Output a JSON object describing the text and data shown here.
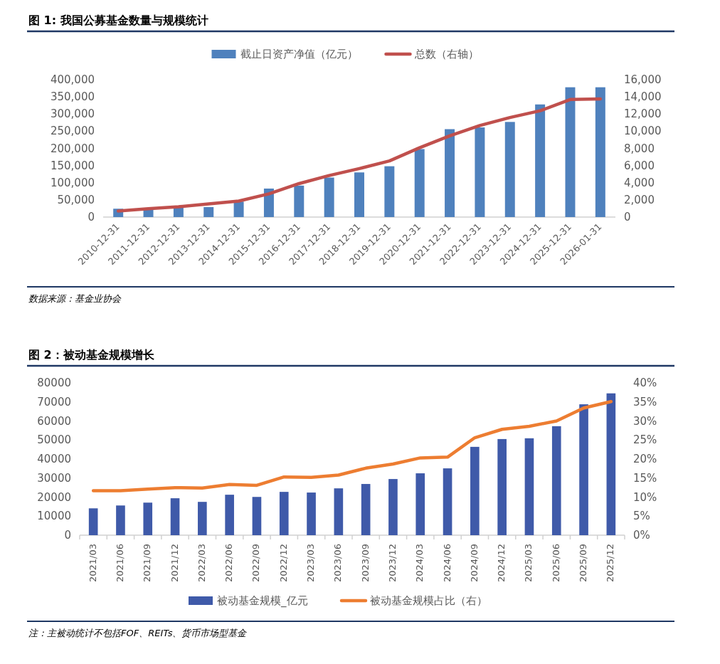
{
  "chart_data": [
    {
      "type": "bar",
      "title": "图 1: 我国公募基金数量与规模统计",
      "categories": [
        "2010-12-31",
        "2011-12-31",
        "2012-12-31",
        "2013-12-31",
        "2014-12-31",
        "2015-12-31",
        "2016-12-31",
        "2017-12-31",
        "2018-12-31",
        "2019-12-31",
        "2020-12-31",
        "2021-12-31",
        "2022-12-31",
        "2023-12-31",
        "2024-12-31",
        "2025-12-31",
        "2026-01-31"
      ],
      "series": [
        {
          "name": "截止日资产净值（亿元）",
          "color": "#4f81bd",
          "values": [
            24300,
            21700,
            28000,
            29000,
            45000,
            83000,
            91600,
            115000,
            130000,
            148000,
            198000,
            256000,
            261000,
            277000,
            328000,
            378000,
            378000
          ]
        },
        {
          "name": "总数（右轴）",
          "type": "line",
          "axis": "y2",
          "color": "#c0504d",
          "values": [
            700,
            970,
            1200,
            1530,
            1860,
            2700,
            3900,
            4840,
            5650,
            6540,
            8070,
            9460,
            10660,
            11600,
            12380,
            13690,
            13770
          ]
        }
      ],
      "ylim": [
        0,
        400000
      ],
      "yticks": [
        0,
        {
          "value": 50000,
          "label": "50,000"
        },
        {
          "value": 100000,
          "label": "100,000"
        },
        {
          "value": 150000,
          "label": "150,000"
        },
        {
          "value": 200000,
          "label": "200,000"
        },
        {
          "value": 250000,
          "label": "250,000"
        },
        {
          "value": 300000,
          "label": "300,000"
        },
        {
          "value": 350000,
          "label": "350,000"
        },
        {
          "value": 400000,
          "label": "400,000"
        }
      ],
      "y2lim": [
        0,
        16000
      ],
      "y2ticks": [
        0,
        {
          "value": 2000,
          "label": "2,000"
        },
        {
          "value": 4000,
          "label": "4,000"
        },
        {
          "value": 6000,
          "label": "6,000"
        },
        {
          "value": 8000,
          "label": "8,000"
        },
        {
          "value": 10000,
          "label": "10,000"
        },
        {
          "value": 12000,
          "label": "12,000"
        },
        {
          "value": 14000,
          "label": "14,000"
        },
        {
          "value": 16000,
          "label": "16,000"
        }
      ],
      "legend": "top",
      "annotations": [
        "数据来源：基金业协会"
      ]
    },
    {
      "type": "bar",
      "title": "图 2：被动基金规模增长",
      "categories": [
        "2021/03",
        "2021/06",
        "2021/09",
        "2021/12",
        "2022/03",
        "2022/06",
        "2022/09",
        "2022/12",
        "2023/03",
        "2023/06",
        "2023/09",
        "2023/12",
        "2024/03",
        "2024/06",
        "2024/09",
        "2024/12",
        "2025/03",
        "2025/06",
        "2025/09",
        "2025/12"
      ],
      "series": [
        {
          "name": "被动基金规模_亿元",
          "color": "#3f5aa9",
          "values": [
            14100,
            15600,
            17100,
            19400,
            17500,
            21250,
            20100,
            22750,
            22400,
            24600,
            26900,
            29500,
            32500,
            35100,
            46400,
            50500,
            50900,
            57250,
            68750,
            74500
          ]
        },
        {
          "name": "被动基金规模占比（右）",
          "type": "line",
          "axis": "y2",
          "color": "#ed7d31",
          "values": [
            11.7,
            11.7,
            12.1,
            12.5,
            12.4,
            13.3,
            13.1,
            15.3,
            15.2,
            15.8,
            17.6,
            18.7,
            20.3,
            20.5,
            25.6,
            27.8,
            28.6,
            30.0,
            33.4,
            35.1
          ]
        }
      ],
      "ylim": [
        0,
        80000
      ],
      "yticks": [
        0,
        10000,
        20000,
        30000,
        40000,
        50000,
        60000,
        70000,
        80000
      ],
      "y2lim": [
        0,
        40
      ],
      "y2ticks": [
        {
          "value": 0,
          "label": "0%"
        },
        {
          "value": 5,
          "label": "5%"
        },
        {
          "value": 10,
          "label": "10%"
        },
        {
          "value": 15,
          "label": "15%"
        },
        {
          "value": 20,
          "label": "20%"
        },
        {
          "value": 25,
          "label": "25%"
        },
        {
          "value": 30,
          "label": "30%"
        },
        {
          "value": 35,
          "label": "35%"
        },
        {
          "value": 40,
          "label": "40%"
        }
      ],
      "legend": "bottom",
      "annotations": [
        "注：主被动统计不包括FOF、REITs、货币市场型基金"
      ]
    }
  ]
}
